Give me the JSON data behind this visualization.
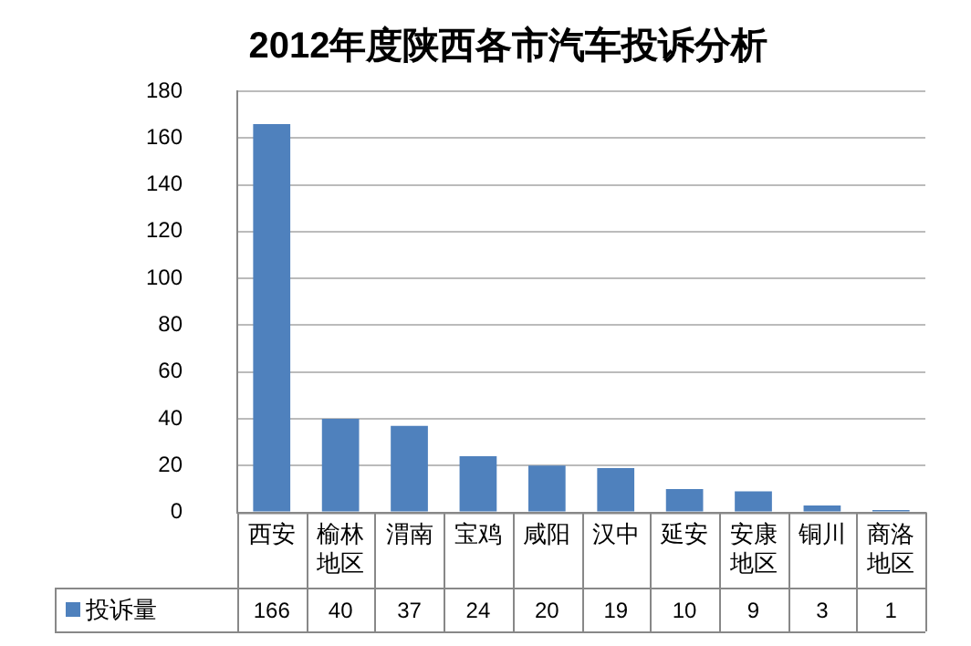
{
  "chart_data": {
    "type": "bar",
    "title": "2012年度陕西各市汽车投诉分析",
    "categories": [
      "西安",
      "榆林地区",
      "渭南",
      "宝鸡",
      "咸阳",
      "汉中",
      "延安",
      "安康地区",
      "铜川",
      "商洛地区"
    ],
    "series": [
      {
        "name": "投诉量",
        "color": "#4f81bd",
        "values": [
          166,
          40,
          37,
          24,
          20,
          19,
          10,
          9,
          3,
          1
        ]
      }
    ],
    "ylim": [
      0,
      180
    ],
    "yticks": [
      0,
      20,
      40,
      60,
      80,
      100,
      120,
      140,
      160,
      180
    ],
    "grid": "y",
    "legend": "bottom",
    "data_labels": true
  }
}
